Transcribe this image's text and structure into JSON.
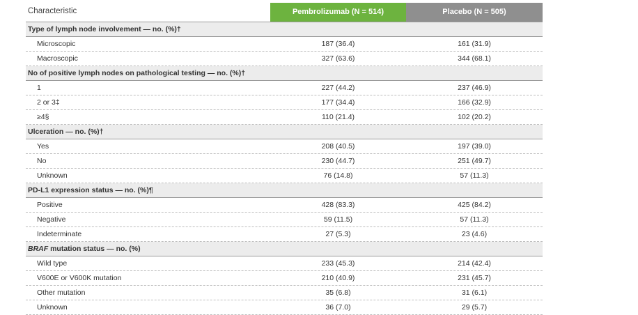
{
  "header": {
    "characteristic": "Characteristic",
    "pembrolizumab": "Pembrolizumab (N = 514)",
    "placebo": "Placebo (N = 505)"
  },
  "sections": [
    {
      "title": "Type of lymph node involvement — no. (%)†",
      "rows": [
        {
          "label": "Microscopic",
          "pem": "187 (36.4)",
          "pla": "161 (31.9)"
        },
        {
          "label": "Macroscopic",
          "pem": "327 (63.6)",
          "pla": "344 (68.1)"
        }
      ]
    },
    {
      "title": "No of positive lymph nodes on pathological testing — no. (%)†",
      "rows": [
        {
          "label": "1",
          "pem": "227 (44.2)",
          "pla": "237 (46.9)"
        },
        {
          "label": "2 or 3‡",
          "pem": "177 (34.4)",
          "pla": "166 (32.9)"
        },
        {
          "label": "≥4§",
          "pem": "110 (21.4)",
          "pla": "102 (20.2)"
        }
      ]
    },
    {
      "title": "Ulceration — no. (%)†",
      "rows": [
        {
          "label": "Yes",
          "pem": "208 (40.5)",
          "pla": "197 (39.0)"
        },
        {
          "label": "No",
          "pem": "230 (44.7)",
          "pla": "251 (49.7)"
        },
        {
          "label": "Unknown",
          "pem": "76 (14.8)",
          "pla": "57 (11.3)"
        }
      ]
    },
    {
      "title": "PD-L1 expression status — no. (%)¶",
      "rows": [
        {
          "label": "Positive",
          "pem": "428 (83.3)",
          "pla": "425 (84.2)"
        },
        {
          "label": "Negative",
          "pem": "59 (11.5)",
          "pla": "57 (11.3)"
        },
        {
          "label": "Indeterminate",
          "pem": "27 (5.3)",
          "pla": "23 (4.6)"
        }
      ]
    },
    {
      "title_italic": "BRAF",
      "title": " mutation status — no. (%)",
      "rows": [
        {
          "label": "Wild type",
          "pem": "233 (45.3)",
          "pla": "214 (42.4)"
        },
        {
          "label": "V600E or V600K mutation",
          "pem": "210 (40.9)",
          "pla": "231 (45.7)"
        },
        {
          "label": "Other mutation",
          "pem": "35 (6.8)",
          "pla": "31 (6.1)"
        },
        {
          "label": "Unknown",
          "pem": "36 (7.0)",
          "pla": "29 (5.7)"
        }
      ]
    }
  ],
  "colors": {
    "pembrolizumab_header": "#6db33f",
    "placebo_header": "#8f8f8f",
    "section_background": "#ececec"
  }
}
